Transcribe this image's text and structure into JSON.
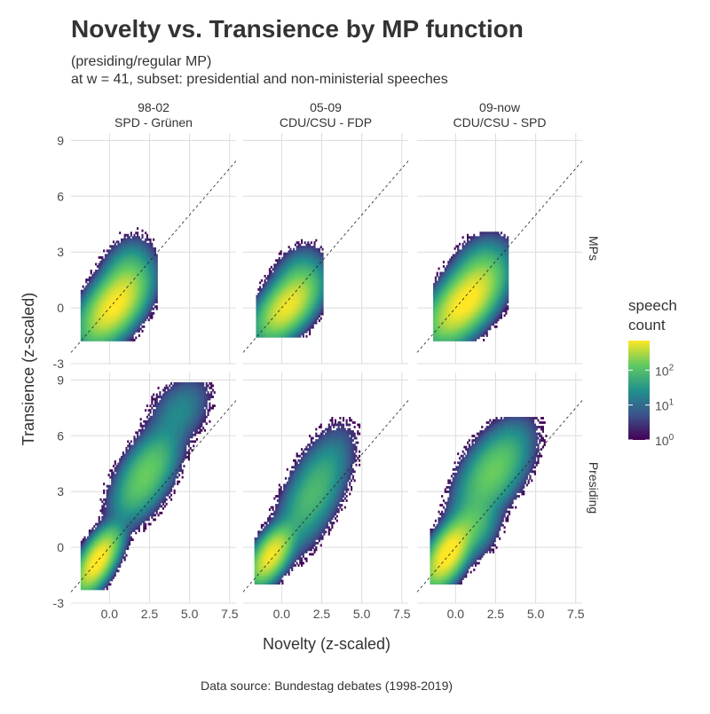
{
  "title": "Novelty vs. Transience by MP function",
  "subtitle_lines": [
    "(presiding/regular MP)",
    "at w = 41, subset: presidential and non-ministerial speeches"
  ],
  "caption": "Data source: Bundestag debates (1998-2019)",
  "chart_data": {
    "type": "heatmap",
    "xlabel": "Novelty (z-scaled)",
    "ylabel": "Transience (z-scaled)",
    "xlim": [
      -2.4,
      7.9
    ],
    "ylim": [
      -3.0,
      9.4
    ],
    "x_ticks": [
      0,
      2.5,
      5,
      7.5
    ],
    "x_tick_labels": [
      "0.0",
      "2.5",
      "5.0",
      "7.5"
    ],
    "y_ticks": [
      -3,
      0,
      3,
      6,
      9
    ],
    "y_tick_labels": [
      "-3",
      "0",
      "3",
      "6",
      "9"
    ],
    "grid": true,
    "reference_line": {
      "style": "dashed",
      "slope": 1,
      "intercept": 0
    },
    "columns": [
      {
        "period": "98-02",
        "coalition": "SPD - Grünen"
      },
      {
        "period": "05-09",
        "coalition": "CDU/CSU - FDP"
      },
      {
        "period": "09-now",
        "coalition": "CDU/CSU - SPD"
      }
    ],
    "rows": [
      "MPs",
      "Presiding"
    ],
    "legend": {
      "title_lines": [
        "speech",
        "count"
      ],
      "scale": "log10",
      "range": [
        1,
        700
      ],
      "tick_values": [
        1,
        10,
        100
      ],
      "tick_labels": [
        {
          "base": "10",
          "exp": "0"
        },
        {
          "base": "10",
          "exp": "1"
        },
        {
          "base": "10",
          "exp": "2"
        }
      ],
      "colors": [
        "#440154",
        "#3b528b",
        "#21918c",
        "#5ec962",
        "#fde725"
      ],
      "position": "right"
    },
    "panels": [
      {
        "col": 0,
        "row": 0,
        "blobs": [
          {
            "cx": 0.2,
            "cy": 0.0,
            "sx": 0.9,
            "sy": 0.9,
            "rho": 0.55,
            "w": 1.0
          },
          {
            "cx": 0.9,
            "cy": 1.3,
            "sx": 0.7,
            "sy": 0.9,
            "rho": 0.3,
            "w": 0.18
          }
        ],
        "xrange": [
          -1.8,
          3.0
        ],
        "yrange": [
          -1.8,
          4.9
        ]
      },
      {
        "col": 1,
        "row": 0,
        "blobs": [
          {
            "cx": 0.3,
            "cy": 0.0,
            "sx": 0.85,
            "sy": 0.8,
            "rho": 0.55,
            "w": 0.85
          },
          {
            "cx": 0.9,
            "cy": 1.2,
            "sx": 0.7,
            "sy": 0.8,
            "rho": 0.3,
            "w": 0.12
          }
        ],
        "xrange": [
          -1.6,
          2.6
        ],
        "yrange": [
          -1.6,
          3.6
        ]
      },
      {
        "col": 2,
        "row": 0,
        "blobs": [
          {
            "cx": 0.5,
            "cy": 0.2,
            "sx": 1.0,
            "sy": 0.95,
            "rho": 0.6,
            "w": 1.1
          },
          {
            "cx": 1.3,
            "cy": 1.5,
            "sx": 0.8,
            "sy": 0.9,
            "rho": 0.35,
            "w": 0.18
          }
        ],
        "xrange": [
          -1.4,
          3.3
        ],
        "yrange": [
          -1.8,
          4.0
        ]
      },
      {
        "col": 0,
        "row": 1,
        "blobs": [
          {
            "cx": -0.8,
            "cy": -0.8,
            "sx": 0.6,
            "sy": 0.75,
            "rho": 0.65,
            "w": 1.2
          },
          {
            "cx": 2.2,
            "cy": 3.8,
            "sx": 0.9,
            "sy": 1.1,
            "rho": 0.6,
            "w": 0.22
          },
          {
            "cx": 4.3,
            "cy": 7.2,
            "sx": 0.9,
            "sy": 0.9,
            "rho": 0.4,
            "w": 0.03
          }
        ],
        "xrange": [
          -1.8,
          6.5
        ],
        "yrange": [
          -2.3,
          8.8
        ]
      },
      {
        "col": 1,
        "row": 1,
        "blobs": [
          {
            "cx": -0.7,
            "cy": -0.5,
            "sx": 0.6,
            "sy": 0.7,
            "rho": 0.6,
            "w": 0.95
          },
          {
            "cx": 1.9,
            "cy": 2.8,
            "sx": 1.0,
            "sy": 1.4,
            "rho": 0.65,
            "w": 0.12
          }
        ],
        "xrange": [
          -1.7,
          4.8
        ],
        "yrange": [
          -2.0,
          7.0
        ]
      },
      {
        "col": 2,
        "row": 1,
        "blobs": [
          {
            "cx": -0.5,
            "cy": -0.4,
            "sx": 0.65,
            "sy": 0.8,
            "rho": 0.6,
            "w": 1.3
          },
          {
            "cx": 2.3,
            "cy": 4.0,
            "sx": 1.0,
            "sy": 1.1,
            "rho": 0.55,
            "w": 0.22
          },
          {
            "cx": 1.0,
            "cy": 1.2,
            "sx": 0.7,
            "sy": 0.8,
            "rho": 0.3,
            "w": 0.15
          }
        ],
        "xrange": [
          -1.6,
          6.0
        ],
        "yrange": [
          -2.0,
          7.0
        ]
      }
    ]
  }
}
